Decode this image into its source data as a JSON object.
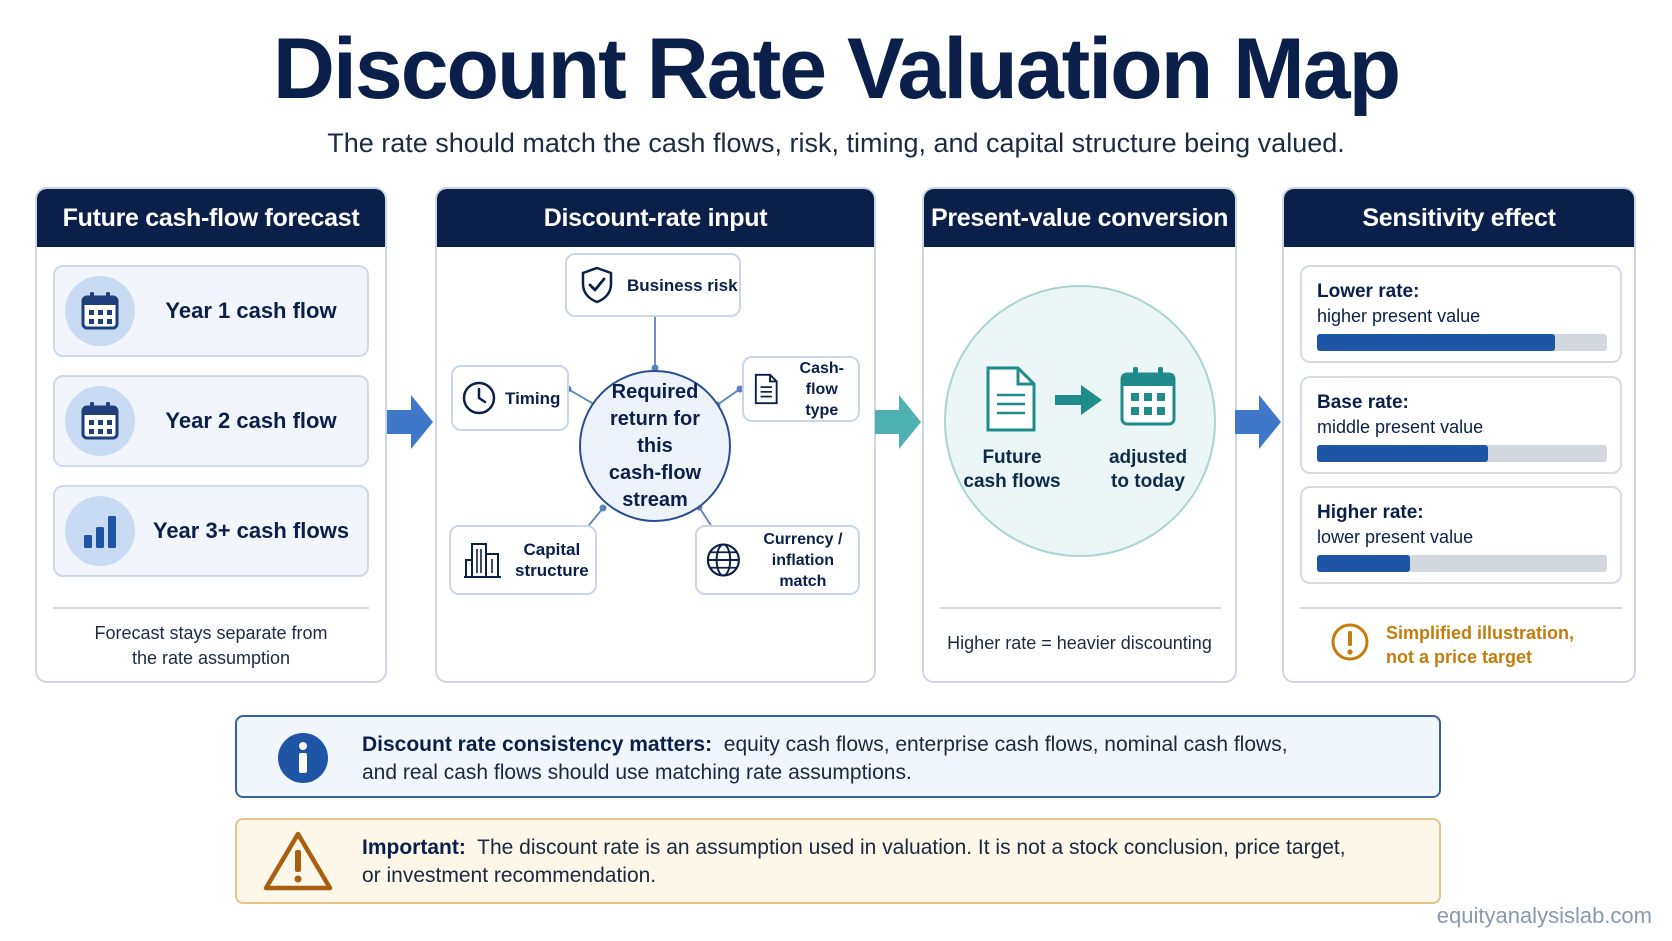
{
  "title": "Discount Rate Valuation Map",
  "subtitle": "The rate should match the cash flows, risk, timing, and capital structure being valued.",
  "panels": {
    "forecast": {
      "heading": "Future cash-flow forecast",
      "items": [
        {
          "label": "Year 1 cash flow",
          "icon": "calendar-icon"
        },
        {
          "label": "Year 2 cash flow",
          "icon": "calendar-icon"
        },
        {
          "label": "Year 3+ cash flows",
          "icon": "bar-chart-icon"
        }
      ],
      "note_line1": "Forecast stays separate from",
      "note_line2": "the rate assumption"
    },
    "discount": {
      "heading": "Discount-rate input",
      "center_line1": "Required",
      "center_line2": "return for this",
      "center_line3": "cash-flow",
      "center_line4": "stream",
      "business_risk": "Business risk",
      "timing": "Timing",
      "cashflow_type_line1": "Cash-flow",
      "cashflow_type_line2": "type",
      "capital_line1": "Capital",
      "capital_line2": "structure",
      "currency_line1": "Currency /",
      "currency_line2": "inflation match"
    },
    "present_value": {
      "heading": "Present-value conversion",
      "from_line1": "Future",
      "from_line2": "cash flows",
      "to_line1": "adjusted",
      "to_line2": "to today",
      "note": "Higher rate = heavier discounting"
    },
    "sensitivity": {
      "heading": "Sensitivity effect",
      "rows": [
        {
          "title": "Lower rate:",
          "desc": "higher present value",
          "level": 0.82
        },
        {
          "title": "Base rate:",
          "desc": "middle present value",
          "level": 0.59
        },
        {
          "title": "Higher rate:",
          "desc": "lower present value",
          "level": 0.32
        }
      ],
      "note_line1": "Simplified illustration,",
      "note_line2": "not a price target"
    }
  },
  "info": {
    "label": "Discount rate consistency matters:",
    "text_line1": "equity cash flows, enterprise cash flows, nominal cash flows,",
    "text_line2": "and real cash flows should use matching rate assumptions."
  },
  "warning": {
    "label": "Important:",
    "text_line1": "The discount rate is an assumption used in valuation. It is not a stock conclusion, price target,",
    "text_line2": "or investment recommendation."
  },
  "footer": "equityanalysislab.com",
  "colors": {
    "navy": "#0b1f4b",
    "blue_bar": "#1e55a5",
    "teal": "#1f8b8a",
    "arrow_blue": "#3f78c8",
    "warning_orange": "#c47d0d"
  }
}
